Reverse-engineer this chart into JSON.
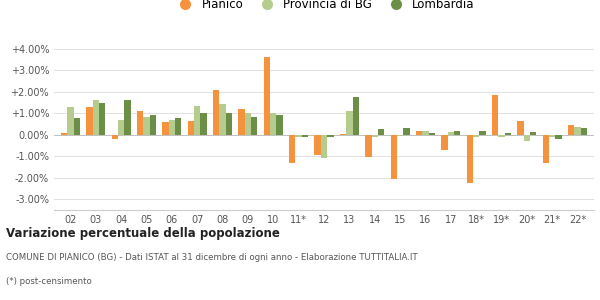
{
  "categories": [
    "02",
    "03",
    "04",
    "05",
    "06",
    "07",
    "08",
    "09",
    "10",
    "11*",
    "12",
    "13",
    "14",
    "15",
    "16",
    "17",
    "18*",
    "19*",
    "20*",
    "21*",
    "22*"
  ],
  "pianico": [
    0.1,
    1.3,
    -0.2,
    1.1,
    0.6,
    0.65,
    2.1,
    1.2,
    3.6,
    -1.3,
    -0.95,
    0.05,
    -1.05,
    -2.05,
    0.2,
    -0.7,
    -2.25,
    1.85,
    0.65,
    -1.3,
    0.45
  ],
  "provincia": [
    1.3,
    1.6,
    0.7,
    0.85,
    0.7,
    1.35,
    1.45,
    1.0,
    1.0,
    -0.1,
    -1.1,
    1.1,
    -0.1,
    -0.05,
    0.2,
    0.15,
    -0.1,
    -0.1,
    -0.3,
    -0.1,
    0.35
  ],
  "lombardia": [
    0.8,
    1.5,
    1.6,
    0.9,
    0.8,
    1.0,
    1.0,
    0.85,
    0.9,
    -0.1,
    -0.1,
    1.75,
    0.25,
    0.3,
    0.1,
    0.2,
    0.2,
    0.1,
    0.15,
    -0.2,
    0.3
  ],
  "pianico_color": "#f5923e",
  "provincia_color": "#b5cc8e",
  "lombardia_color": "#6b8f47",
  "bg_color": "#ffffff",
  "grid_color": "#e0e0e0",
  "ylim": [
    -3.5,
    4.6
  ],
  "yticks": [
    -3.0,
    -2.0,
    -1.0,
    0.0,
    1.0,
    2.0,
    3.0,
    4.0
  ],
  "ytick_labels": [
    "-3.00%",
    "-2.00%",
    "-1.00%",
    "0.00%",
    "+1.00%",
    "+2.00%",
    "+3.00%",
    "+4.00%"
  ],
  "title": "Variazione percentuale della popolazione",
  "subtitle": "COMUNE DI PIANICO (BG) - Dati ISTAT al 31 dicembre di ogni anno - Elaborazione TUTTITALIA.IT",
  "footnote": "(*) post-censimento",
  "legend_labels": [
    "Pianico",
    "Provincia di BG",
    "Lombardia"
  ],
  "bar_width": 0.25
}
